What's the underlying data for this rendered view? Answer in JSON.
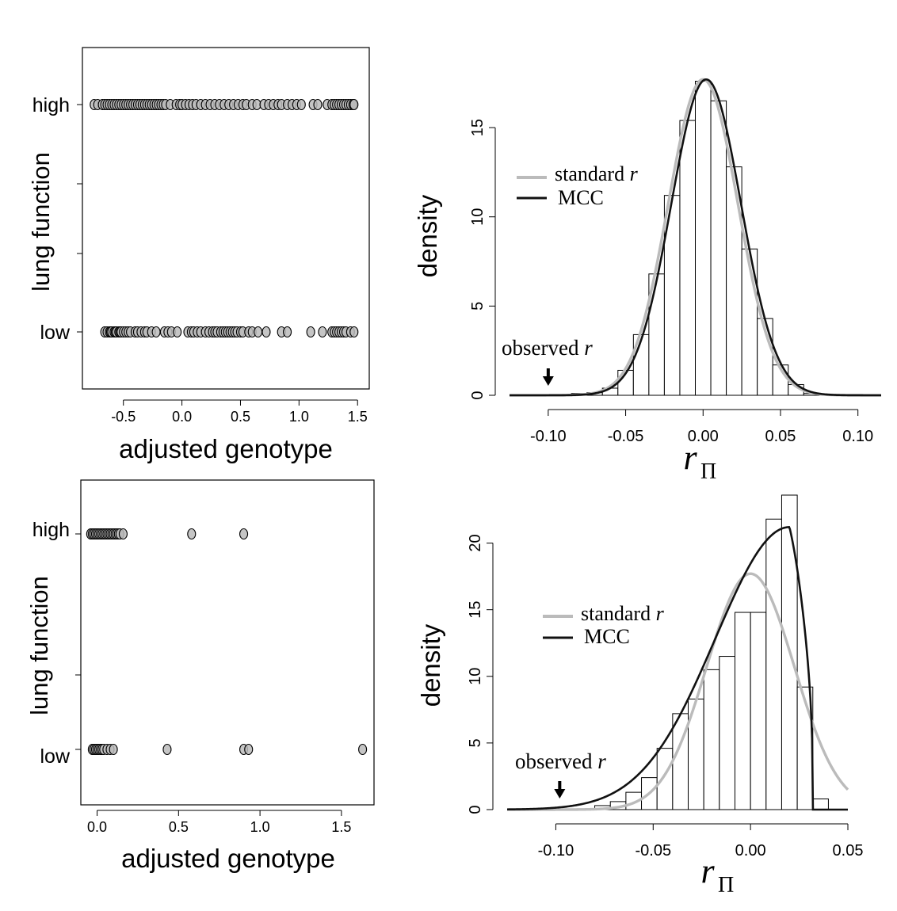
{
  "chart_data": [
    {
      "id": "scatter_top",
      "type": "scatter",
      "xlabel": "adjusted genotype",
      "ylabel": "lung function",
      "xlim": [
        -0.85,
        1.6
      ],
      "xticks": [
        -0.5,
        0.0,
        0.5,
        1.0,
        1.5
      ],
      "xtick_labels": [
        "-0.5",
        "0.0",
        "0.5",
        "1.0",
        "1.5"
      ],
      "categories": [
        "low",
        "high"
      ],
      "series": [
        {
          "name": "high",
          "x": [
            -0.75,
            -0.72,
            -0.68,
            -0.66,
            -0.64,
            -0.62,
            -0.6,
            -0.58,
            -0.56,
            -0.54,
            -0.52,
            -0.5,
            -0.48,
            -0.46,
            -0.44,
            -0.42,
            -0.4,
            -0.38,
            -0.36,
            -0.34,
            -0.32,
            -0.3,
            -0.28,
            -0.26,
            -0.24,
            -0.22,
            -0.2,
            -0.18,
            -0.16,
            -0.14,
            -0.1,
            -0.05,
            -0.02,
            0.0,
            0.03,
            0.06,
            0.09,
            0.12,
            0.16,
            0.2,
            0.24,
            0.28,
            0.32,
            0.36,
            0.4,
            0.44,
            0.48,
            0.52,
            0.55,
            0.6,
            0.64,
            0.7,
            0.74,
            0.78,
            0.82,
            0.85,
            0.9,
            0.94,
            0.98,
            1.02,
            1.12,
            1.16,
            1.24,
            1.28,
            1.3,
            1.32,
            1.34,
            1.36,
            1.38,
            1.4,
            1.42,
            1.44,
            1.46,
            1.47
          ]
        },
        {
          "name": "low",
          "x": [
            -0.66,
            -0.64,
            -0.62,
            -0.61,
            -0.6,
            -0.58,
            -0.57,
            -0.56,
            -0.54,
            -0.53,
            -0.52,
            -0.5,
            -0.48,
            -0.46,
            -0.44,
            -0.4,
            -0.38,
            -0.35,
            -0.32,
            -0.3,
            -0.26,
            -0.22,
            -0.15,
            -0.12,
            -0.09,
            -0.04,
            0.05,
            0.08,
            0.1,
            0.13,
            0.16,
            0.2,
            0.23,
            0.26,
            0.28,
            0.3,
            0.33,
            0.35,
            0.37,
            0.39,
            0.41,
            0.43,
            0.45,
            0.47,
            0.5,
            0.52,
            0.57,
            0.6,
            0.65,
            0.72,
            0.85,
            0.9,
            1.1,
            1.2,
            1.28,
            1.3,
            1.32,
            1.34,
            1.36,
            1.38,
            1.4,
            1.44,
            1.47
          ]
        }
      ]
    },
    {
      "id": "hist_top",
      "type": "bar",
      "xlabel": "r",
      "xlabel_sub": "Π",
      "ylabel": "density",
      "xlim": [
        -0.125,
        0.115
      ],
      "ylim": [
        0,
        17.8
      ],
      "xticks": [
        -0.1,
        -0.05,
        0.0,
        0.05,
        0.1
      ],
      "xtick_labels": [
        "-0.10",
        "-0.05",
        "0.00",
        "0.05",
        "0.10"
      ],
      "yticks": [
        0,
        5,
        10,
        15
      ],
      "ytick_labels": [
        "0",
        "5",
        "10",
        "15"
      ],
      "bin_edges": [
        -0.085,
        -0.075,
        -0.065,
        -0.055,
        -0.045,
        -0.035,
        -0.025,
        -0.015,
        -0.005,
        0.005,
        0.015,
        0.025,
        0.035,
        0.045,
        0.055,
        0.065,
        0.075
      ],
      "values": [
        0.1,
        0.15,
        0.4,
        1.4,
        3.4,
        6.8,
        11.2,
        15.4,
        17.6,
        16.5,
        12.8,
        8.2,
        4.3,
        1.7,
        0.6,
        0.1
      ],
      "series": [
        {
          "name": "standard r",
          "kind": "normal",
          "mean": 0.0,
          "sd": 0.0225,
          "color": "#bbbbbb"
        },
        {
          "name": "MCC",
          "kind": "normal",
          "mean": 0.002,
          "sd": 0.0225,
          "color": "#111111"
        }
      ],
      "annotation": {
        "text": "observed r",
        "x": -0.1
      },
      "legend": [
        "standard r",
        "MCC"
      ],
      "legend_position": "top-left"
    },
    {
      "id": "scatter_bottom",
      "type": "scatter",
      "xlabel": "adjusted genotype",
      "ylabel": "lung function",
      "xlim": [
        -0.1,
        1.7
      ],
      "xticks": [
        0.0,
        0.5,
        1.0,
        1.5
      ],
      "xtick_labels": [
        "0.0",
        "0.5",
        "1.0",
        "1.5"
      ],
      "categories": [
        "low",
        "high"
      ],
      "series": [
        {
          "name": "high",
          "x": [
            -0.04,
            -0.03,
            -0.02,
            -0.01,
            0.0,
            0.01,
            0.02,
            0.03,
            0.04,
            0.05,
            0.06,
            0.07,
            0.08,
            0.09,
            0.1,
            0.11,
            0.12,
            0.13,
            0.14,
            0.16,
            0.58,
            0.9
          ]
        },
        {
          "name": "low",
          "x": [
            -0.03,
            -0.02,
            -0.01,
            0.0,
            0.01,
            0.02,
            0.03,
            0.04,
            0.06,
            0.08,
            0.1,
            0.43,
            0.9,
            0.93,
            1.63
          ]
        }
      ]
    },
    {
      "id": "hist_bottom",
      "type": "bar",
      "xlabel": "r",
      "xlabel_sub": "Π",
      "ylabel": "density",
      "xlim": [
        -0.125,
        0.05
      ],
      "ylim": [
        0,
        23.6
      ],
      "xticks": [
        -0.1,
        -0.05,
        0.0,
        0.05
      ],
      "xtick_labels": [
        "-0.10",
        "-0.05",
        "0.00",
        "0.05"
      ],
      "yticks": [
        0,
        5,
        10,
        15,
        20
      ],
      "ytick_labels": [
        "0",
        "5",
        "10",
        "15",
        "20"
      ],
      "bin_edges": [
        -0.08,
        -0.072,
        -0.064,
        -0.056,
        -0.048,
        -0.04,
        -0.032,
        -0.024,
        -0.016,
        -0.008,
        0.0,
        0.008,
        0.016,
        0.024,
        0.032,
        0.04
      ],
      "values": [
        0.3,
        0.6,
        1.3,
        2.4,
        4.6,
        7.2,
        8.3,
        10.5,
        11.5,
        14.8,
        14.8,
        21.8,
        23.6,
        9.2,
        0.8
      ],
      "series": [
        {
          "name": "standard r",
          "kind": "normal",
          "mean": 0.0,
          "sd": 0.0225,
          "color": "#bbbbbb"
        },
        {
          "name": "MCC",
          "kind": "skewed",
          "mode": 0.02,
          "peak": 21.2,
          "upper_bound": 0.032,
          "color": "#111111"
        }
      ],
      "annotation": {
        "text": "observed r",
        "x": -0.098
      },
      "legend": [
        "standard r",
        "MCC"
      ],
      "legend_position": "top-left"
    }
  ]
}
